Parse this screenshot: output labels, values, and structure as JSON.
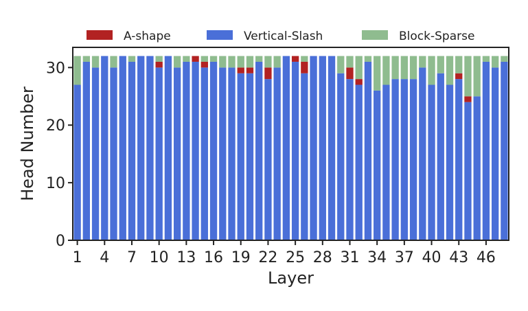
{
  "chart_data": {
    "type": "bar",
    "stacked": true,
    "xlabel": "Layer",
    "ylabel": "Head Number",
    "ylim": [
      0,
      33.5
    ],
    "yticks": [
      0,
      10,
      20,
      30
    ],
    "xtick_labels": [
      "1",
      "4",
      "7",
      "10",
      "13",
      "16",
      "19",
      "22",
      "25",
      "28",
      "31",
      "34",
      "37",
      "40",
      "43",
      "46"
    ],
    "grid": false,
    "legend_position": "top",
    "categories": [
      1,
      2,
      3,
      4,
      5,
      6,
      7,
      8,
      9,
      10,
      11,
      12,
      13,
      14,
      15,
      16,
      17,
      18,
      19,
      20,
      21,
      22,
      23,
      24,
      25,
      26,
      27,
      28,
      29,
      30,
      31,
      32,
      33,
      34,
      35,
      36,
      37,
      38,
      39,
      40,
      41,
      42,
      43,
      44,
      45,
      46,
      47,
      48
    ],
    "series": [
      {
        "name": "Vertical-Slash",
        "color": "#4a6fd8",
        "values": [
          27,
          31,
          30,
          32,
          30,
          32,
          31,
          32,
          32,
          30,
          32,
          30,
          31,
          31,
          30,
          31,
          30,
          30,
          29,
          29,
          31,
          28,
          30,
          32,
          31,
          29,
          32,
          32,
          32,
          29,
          28,
          27,
          31,
          26,
          27,
          28,
          28,
          28,
          30,
          27,
          29,
          27,
          28,
          24,
          25,
          31,
          30,
          31
        ]
      },
      {
        "name": "A-shape",
        "color": "#b22222",
        "values": [
          0,
          0,
          0,
          0,
          0,
          0,
          0,
          0,
          0,
          1,
          0,
          0,
          0,
          1,
          1,
          0,
          0,
          0,
          1,
          1,
          0,
          2,
          0,
          0,
          1,
          2,
          0,
          0,
          0,
          0,
          2,
          1,
          0,
          0,
          0,
          0,
          0,
          0,
          0,
          0,
          0,
          0,
          1,
          1,
          0,
          0,
          0,
          0
        ]
      },
      {
        "name": "Block-Sparse",
        "color": "#8fbc8f",
        "values": [
          5,
          1,
          2,
          0,
          2,
          0,
          1,
          0,
          0,
          1,
          0,
          2,
          1,
          0,
          1,
          1,
          2,
          2,
          2,
          2,
          1,
          2,
          2,
          0,
          0,
          1,
          0,
          0,
          0,
          3,
          2,
          4,
          1,
          6,
          5,
          4,
          4,
          4,
          2,
          5,
          3,
          5,
          3,
          7,
          7,
          1,
          2,
          1
        ]
      }
    ]
  }
}
